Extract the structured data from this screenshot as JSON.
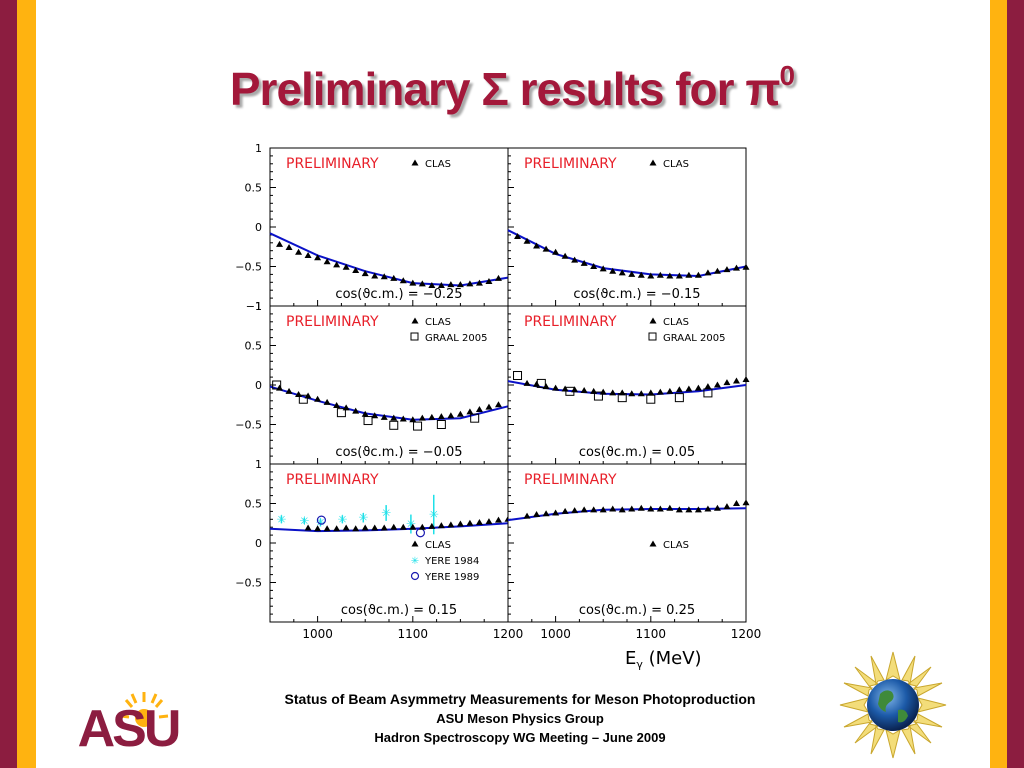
{
  "slide": {
    "title_main": "Preliminary Σ results for π",
    "title_sup": "0",
    "footer_line1": "Status of Beam Asymmetry Measurements for Meson Photoproduction",
    "footer_line2": "ASU Meson Physics Group",
    "footer_line3": "Hadron Spectroscopy WG Meeting – June 2009",
    "logo_text": "ASU",
    "colors": {
      "maroon": "#8c1d40",
      "gold": "#ffb310",
      "title": "#a3183a",
      "fit": "#0b12c8",
      "preliminary": "#e8202a",
      "yere": "#1ee0e8"
    }
  },
  "chart_data": {
    "type": "scatter",
    "x_label": "E",
    "x_label_sub": "γ",
    "x_label_unit": "(MeV)",
    "xlim": [
      950,
      1200
    ],
    "ylim": [
      -1,
      1
    ],
    "x_ticks": [
      1000,
      1100,
      1200
    ],
    "y_ticks": [
      1,
      0.5,
      0,
      -0.5,
      -1
    ],
    "preliminary_label": "PRELIMINARY",
    "legend_labels": {
      "clas": "CLAS",
      "graal": "GRAAL 2005",
      "yere1984": "YERE 1984",
      "yere1989": "YERE 1989"
    },
    "panels": [
      {
        "id": "p1",
        "label": "cos(ϑc.m.) = −0.25",
        "legend": [
          "clas"
        ],
        "fit": [
          [
            950,
            -0.08
          ],
          [
            1000,
            -0.36
          ],
          [
            1050,
            -0.56
          ],
          [
            1100,
            -0.71
          ],
          [
            1150,
            -0.74
          ],
          [
            1200,
            -0.64
          ]
        ],
        "clas": [
          [
            960,
            -0.22
          ],
          [
            970,
            -0.26
          ],
          [
            980,
            -0.32
          ],
          [
            990,
            -0.36
          ],
          [
            1000,
            -0.39
          ],
          [
            1010,
            -0.44
          ],
          [
            1020,
            -0.48
          ],
          [
            1030,
            -0.51
          ],
          [
            1040,
            -0.55
          ],
          [
            1050,
            -0.59
          ],
          [
            1060,
            -0.62
          ],
          [
            1070,
            -0.63
          ],
          [
            1080,
            -0.65
          ],
          [
            1090,
            -0.68
          ],
          [
            1100,
            -0.71
          ],
          [
            1110,
            -0.72
          ],
          [
            1120,
            -0.74
          ],
          [
            1130,
            -0.74
          ],
          [
            1140,
            -0.73
          ],
          [
            1150,
            -0.73
          ],
          [
            1160,
            -0.72
          ],
          [
            1170,
            -0.71
          ],
          [
            1180,
            -0.69
          ],
          [
            1190,
            -0.65
          ]
        ]
      },
      {
        "id": "p2",
        "label": "cos(ϑc.m.) = −0.15",
        "legend": [
          "clas"
        ],
        "fit": [
          [
            950,
            -0.04
          ],
          [
            1000,
            -0.34
          ],
          [
            1050,
            -0.52
          ],
          [
            1100,
            -0.6
          ],
          [
            1150,
            -0.62
          ],
          [
            1200,
            -0.5
          ]
        ],
        "clas": [
          [
            960,
            -0.12
          ],
          [
            970,
            -0.18
          ],
          [
            980,
            -0.24
          ],
          [
            990,
            -0.28
          ],
          [
            1000,
            -0.32
          ],
          [
            1010,
            -0.37
          ],
          [
            1020,
            -0.42
          ],
          [
            1030,
            -0.46
          ],
          [
            1040,
            -0.5
          ],
          [
            1050,
            -0.53
          ],
          [
            1060,
            -0.56
          ],
          [
            1070,
            -0.58
          ],
          [
            1080,
            -0.6
          ],
          [
            1090,
            -0.61
          ],
          [
            1100,
            -0.62
          ],
          [
            1110,
            -0.61
          ],
          [
            1120,
            -0.62
          ],
          [
            1130,
            -0.62
          ],
          [
            1140,
            -0.61
          ],
          [
            1150,
            -0.61
          ],
          [
            1160,
            -0.58
          ],
          [
            1170,
            -0.56
          ],
          [
            1180,
            -0.54
          ],
          [
            1190,
            -0.52
          ],
          [
            1200,
            -0.51
          ]
        ]
      },
      {
        "id": "p3",
        "label": "cos(ϑc.m.) = −0.05",
        "legend": [
          "clas",
          "graal"
        ],
        "fit": [
          [
            950,
            -0.02
          ],
          [
            1000,
            -0.2
          ],
          [
            1050,
            -0.36
          ],
          [
            1100,
            -0.44
          ],
          [
            1150,
            -0.42
          ],
          [
            1200,
            -0.27
          ]
        ],
        "clas": [
          [
            960,
            -0.04
          ],
          [
            970,
            -0.08
          ],
          [
            980,
            -0.12
          ],
          [
            990,
            -0.14
          ],
          [
            1000,
            -0.18
          ],
          [
            1010,
            -0.22
          ],
          [
            1020,
            -0.26
          ],
          [
            1030,
            -0.29
          ],
          [
            1040,
            -0.33
          ],
          [
            1050,
            -0.37
          ],
          [
            1060,
            -0.39
          ],
          [
            1070,
            -0.41
          ],
          [
            1080,
            -0.42
          ],
          [
            1090,
            -0.43
          ],
          [
            1100,
            -0.44
          ],
          [
            1110,
            -0.42
          ],
          [
            1120,
            -0.41
          ],
          [
            1130,
            -0.4
          ],
          [
            1140,
            -0.39
          ],
          [
            1150,
            -0.37
          ],
          [
            1160,
            -0.34
          ],
          [
            1170,
            -0.31
          ],
          [
            1180,
            -0.28
          ],
          [
            1190,
            -0.25
          ]
        ],
        "graal": [
          [
            957,
            0.0
          ],
          [
            985,
            -0.18
          ],
          [
            1025,
            -0.35
          ],
          [
            1053,
            -0.45
          ],
          [
            1080,
            -0.51
          ],
          [
            1105,
            -0.52
          ],
          [
            1130,
            -0.5
          ],
          [
            1165,
            -0.42
          ]
        ]
      },
      {
        "id": "p4",
        "label": "cos(ϑc.m.) = 0.05",
        "legend": [
          "clas",
          "graal"
        ],
        "fit": [
          [
            950,
            0.05
          ],
          [
            1000,
            -0.06
          ],
          [
            1050,
            -0.11
          ],
          [
            1100,
            -0.12
          ],
          [
            1150,
            -0.08
          ],
          [
            1200,
            0.0
          ]
        ],
        "clas": [
          [
            970,
            0.02
          ],
          [
            980,
            0.01
          ],
          [
            990,
            -0.02
          ],
          [
            1000,
            -0.04
          ],
          [
            1010,
            -0.05
          ],
          [
            1020,
            -0.06
          ],
          [
            1030,
            -0.07
          ],
          [
            1040,
            -0.08
          ],
          [
            1050,
            -0.09
          ],
          [
            1060,
            -0.1
          ],
          [
            1070,
            -0.1
          ],
          [
            1080,
            -0.11
          ],
          [
            1090,
            -0.11
          ],
          [
            1100,
            -0.1
          ],
          [
            1110,
            -0.09
          ],
          [
            1120,
            -0.08
          ],
          [
            1130,
            -0.06
          ],
          [
            1140,
            -0.05
          ],
          [
            1150,
            -0.04
          ],
          [
            1160,
            -0.02
          ],
          [
            1170,
            0.0
          ],
          [
            1180,
            0.03
          ],
          [
            1190,
            0.05
          ],
          [
            1200,
            0.07
          ]
        ],
        "graal": [
          [
            960,
            0.12
          ],
          [
            985,
            0.02
          ],
          [
            1015,
            -0.08
          ],
          [
            1045,
            -0.14
          ],
          [
            1070,
            -0.16
          ],
          [
            1100,
            -0.18
          ],
          [
            1130,
            -0.16
          ],
          [
            1160,
            -0.1
          ]
        ]
      },
      {
        "id": "p5",
        "label": "cos(ϑc.m.) = 0.15",
        "legend": [
          "clas",
          "yere1984",
          "yere1989"
        ],
        "fit": [
          [
            950,
            0.18
          ],
          [
            1000,
            0.15
          ],
          [
            1050,
            0.16
          ],
          [
            1100,
            0.18
          ],
          [
            1150,
            0.21
          ],
          [
            1200,
            0.25
          ]
        ],
        "clas": [
          [
            990,
            0.19
          ],
          [
            1000,
            0.18
          ],
          [
            1010,
            0.18
          ],
          [
            1020,
            0.18
          ],
          [
            1030,
            0.19
          ],
          [
            1040,
            0.18
          ],
          [
            1050,
            0.19
          ],
          [
            1060,
            0.19
          ],
          [
            1070,
            0.19
          ],
          [
            1080,
            0.2
          ],
          [
            1090,
            0.2
          ],
          [
            1100,
            0.2
          ],
          [
            1110,
            0.2
          ],
          [
            1120,
            0.21
          ],
          [
            1130,
            0.22
          ],
          [
            1140,
            0.23
          ],
          [
            1150,
            0.24
          ],
          [
            1160,
            0.25
          ],
          [
            1170,
            0.26
          ],
          [
            1180,
            0.27
          ],
          [
            1190,
            0.29
          ],
          [
            1200,
            0.3
          ]
        ],
        "yere1984": [
          [
            962,
            0.3,
            0.05
          ],
          [
            986,
            0.28,
            0.04
          ],
          [
            1003,
            0.26,
            0.05
          ],
          [
            1026,
            0.3,
            0.05
          ],
          [
            1048,
            0.32,
            0.06
          ],
          [
            1072,
            0.38,
            0.1
          ],
          [
            1098,
            0.24,
            0.12
          ],
          [
            1122,
            0.36,
            0.25
          ]
        ],
        "yere1989": [
          [
            1004,
            0.29
          ],
          [
            1108,
            0.13
          ]
        ]
      },
      {
        "id": "p6",
        "label": "cos(ϑc.m.) = 0.25",
        "legend": [
          "clas"
        ],
        "fit": [
          [
            950,
            0.29
          ],
          [
            1000,
            0.37
          ],
          [
            1050,
            0.42
          ],
          [
            1100,
            0.43
          ],
          [
            1150,
            0.43
          ],
          [
            1200,
            0.44
          ]
        ],
        "clas": [
          [
            970,
            0.34
          ],
          [
            980,
            0.36
          ],
          [
            990,
            0.37
          ],
          [
            1000,
            0.38
          ],
          [
            1010,
            0.4
          ],
          [
            1020,
            0.41
          ],
          [
            1030,
            0.42
          ],
          [
            1040,
            0.42
          ],
          [
            1050,
            0.42
          ],
          [
            1060,
            0.43
          ],
          [
            1070,
            0.42
          ],
          [
            1080,
            0.43
          ],
          [
            1090,
            0.44
          ],
          [
            1100,
            0.43
          ],
          [
            1110,
            0.43
          ],
          [
            1120,
            0.44
          ],
          [
            1130,
            0.42
          ],
          [
            1140,
            0.42
          ],
          [
            1150,
            0.42
          ],
          [
            1160,
            0.43
          ],
          [
            1170,
            0.44
          ],
          [
            1180,
            0.46
          ],
          [
            1190,
            0.5
          ],
          [
            1200,
            0.51
          ]
        ]
      }
    ]
  }
}
